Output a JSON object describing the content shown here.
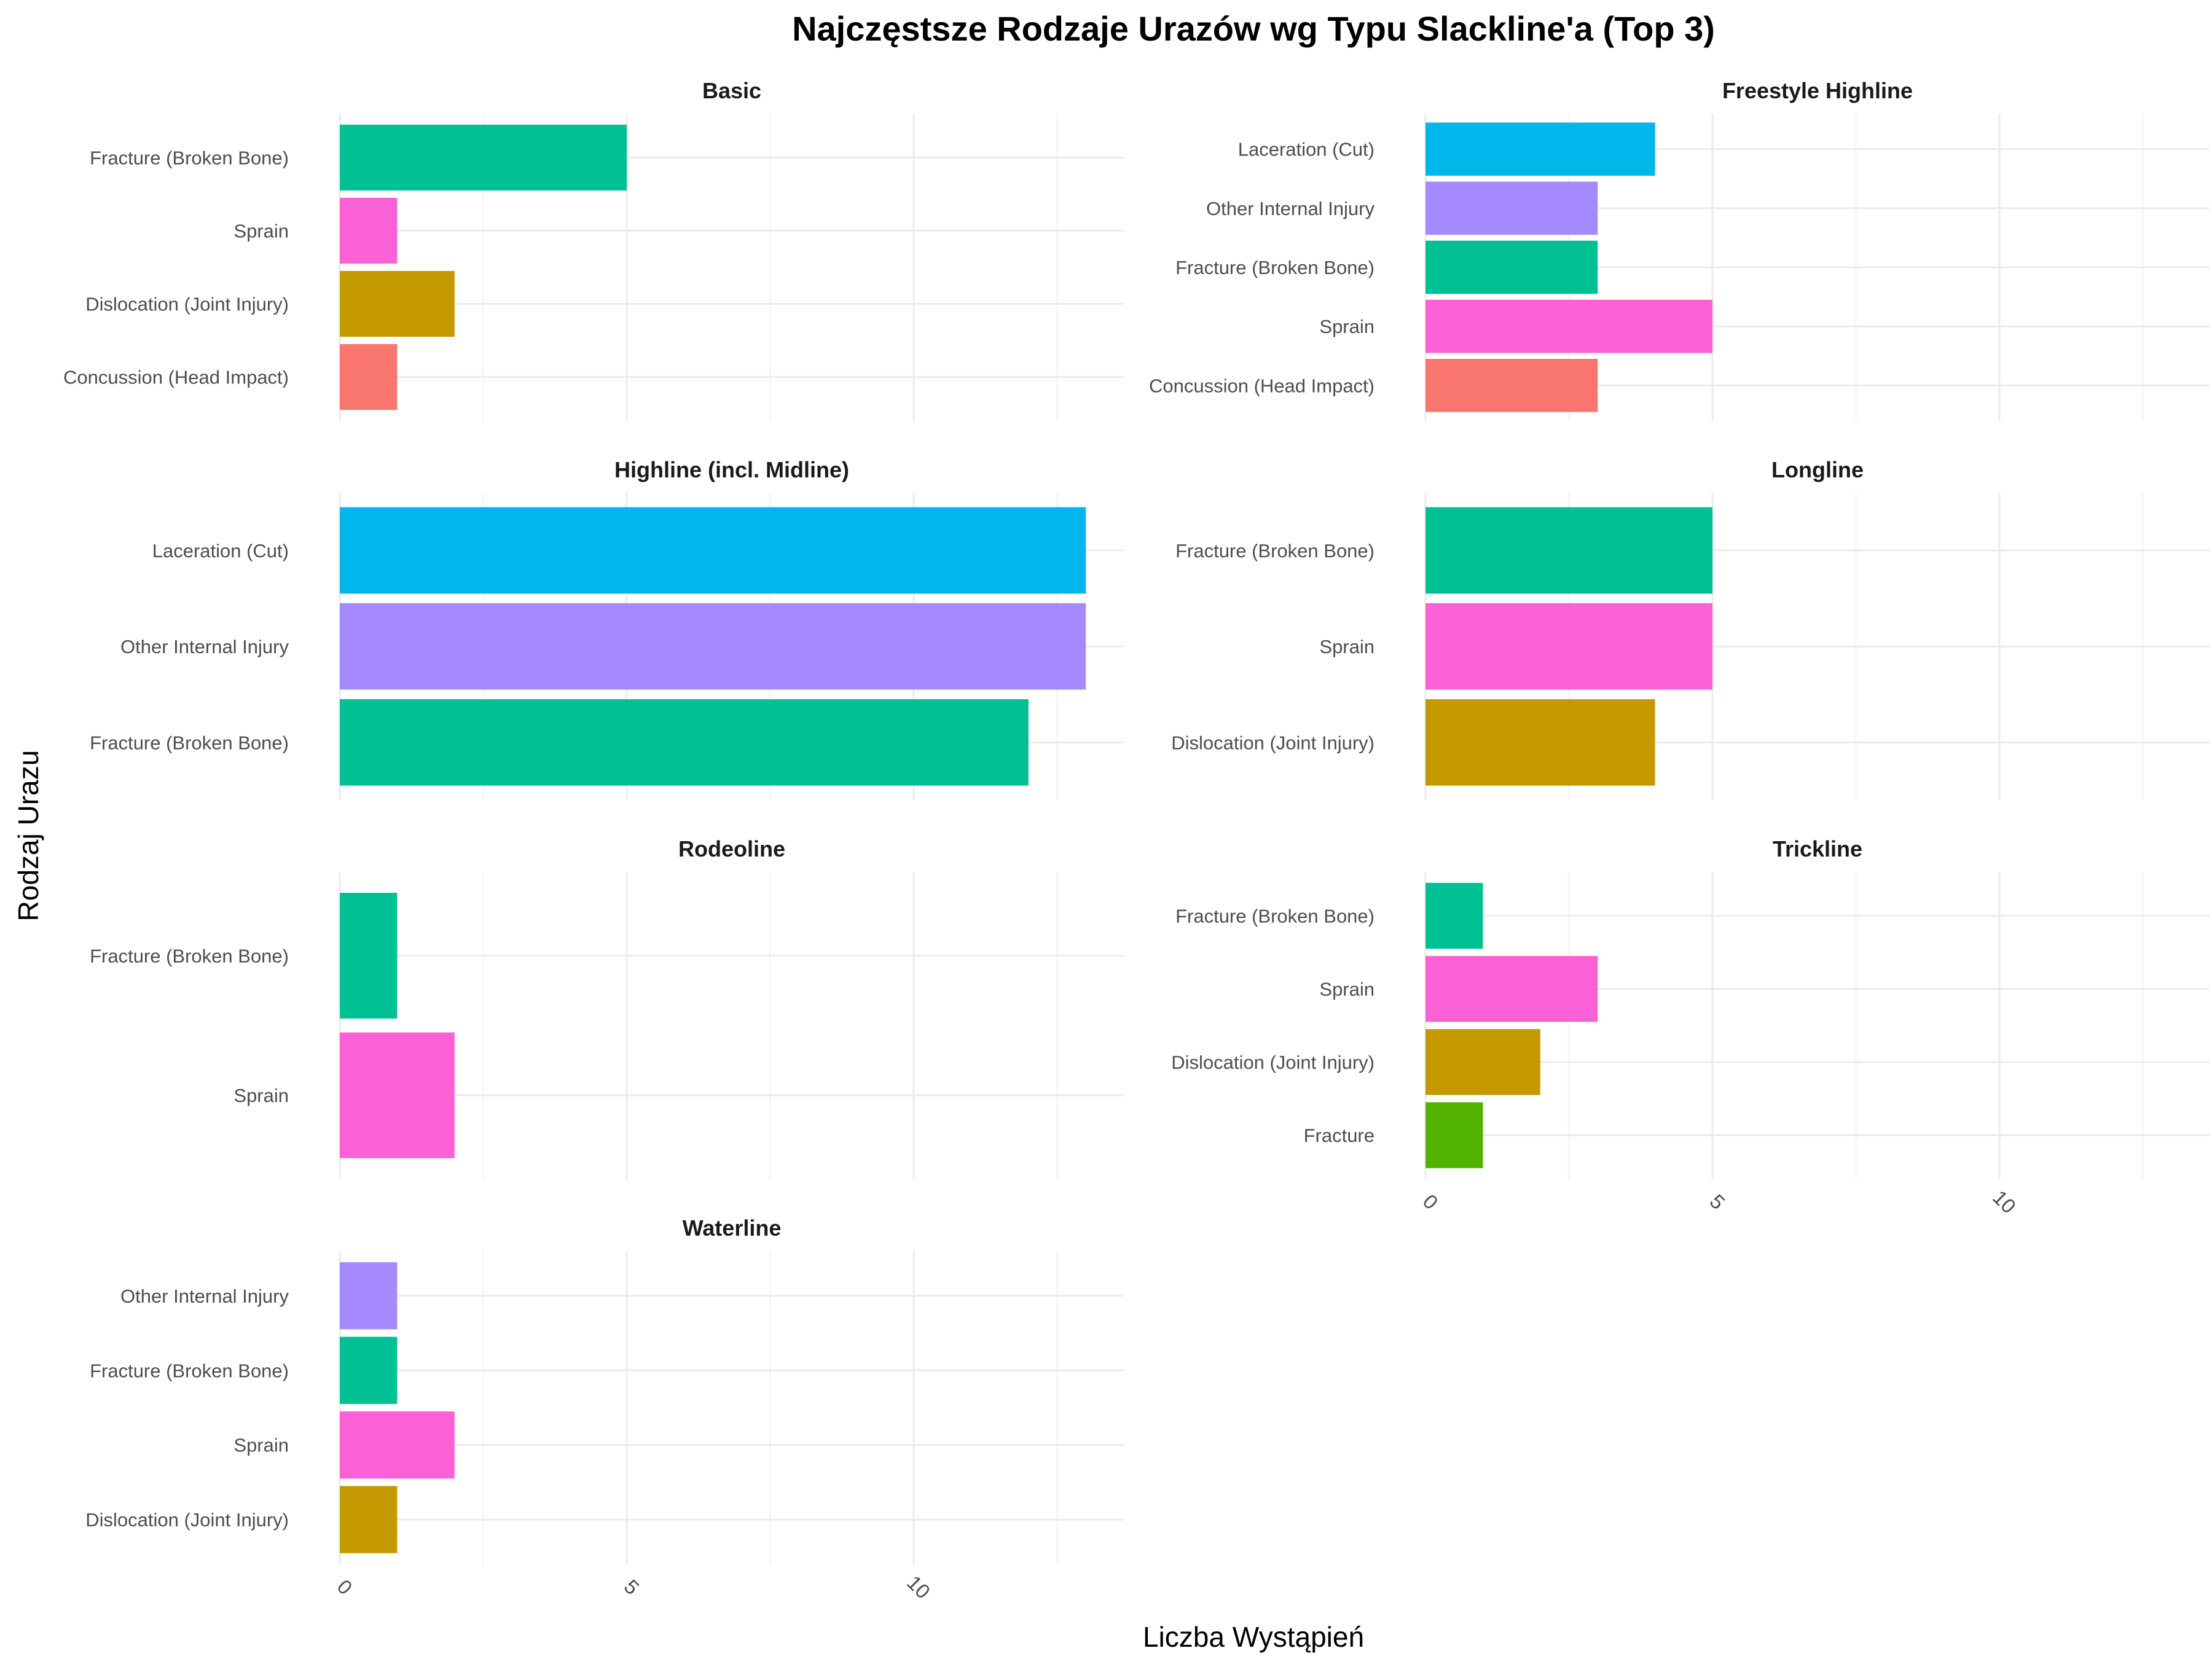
{
  "chart_data": {
    "type": "bar",
    "orientation": "horizontal",
    "title": "Najczęstsze Rodzaje Urazów wg Typu Slackline'a (Top 3)",
    "xlabel": "Liczba Wystąpień",
    "ylabel": "Rodzaj Urazu",
    "xlim": [
      0,
      13.5
    ],
    "x_ticks": [
      "0",
      "5",
      "10"
    ],
    "grid": true,
    "legend": "none",
    "colors": {
      "Concussion (Head Impact)": "#F8766D",
      "Dislocation (Joint Injury)": "#C49A00",
      "Fracture": "#53B400",
      "Fracture (Broken Bone)": "#00C094",
      "Laceration (Cut)": "#00B6EB",
      "Other Internal Injury": "#A58AFF",
      "Sprain": "#FB61D7"
    },
    "panels": [
      {
        "name": "Basic",
        "categories": [
          "Fracture (Broken Bone)",
          "Sprain",
          "Dislocation (Joint Injury)",
          "Concussion (Head Impact)"
        ],
        "values": [
          5,
          1,
          2,
          1
        ]
      },
      {
        "name": "Freestyle Highline",
        "categories": [
          "Laceration (Cut)",
          "Other Internal Injury",
          "Fracture (Broken Bone)",
          "Sprain",
          "Concussion (Head Impact)"
        ],
        "values": [
          4,
          3,
          3,
          5,
          3
        ]
      },
      {
        "name": "Highline (incl. Midline)",
        "categories": [
          "Laceration (Cut)",
          "Other Internal Injury",
          "Fracture (Broken Bone)"
        ],
        "values": [
          13,
          13,
          12
        ]
      },
      {
        "name": "Longline",
        "categories": [
          "Fracture (Broken Bone)",
          "Sprain",
          "Dislocation (Joint Injury)"
        ],
        "values": [
          5,
          5,
          4
        ]
      },
      {
        "name": "Rodeoline",
        "categories": [
          "Fracture (Broken Bone)",
          "Sprain"
        ],
        "values": [
          1,
          2
        ]
      },
      {
        "name": "Trickline",
        "categories": [
          "Fracture (Broken Bone)",
          "Sprain",
          "Dislocation (Joint Injury)",
          "Fracture"
        ],
        "values": [
          1,
          3,
          2,
          1
        ]
      },
      {
        "name": "Waterline",
        "categories": [
          "Other Internal Injury",
          "Fracture (Broken Bone)",
          "Sprain",
          "Dislocation (Joint Injury)"
        ],
        "values": [
          1,
          1,
          2,
          1
        ]
      }
    ]
  }
}
